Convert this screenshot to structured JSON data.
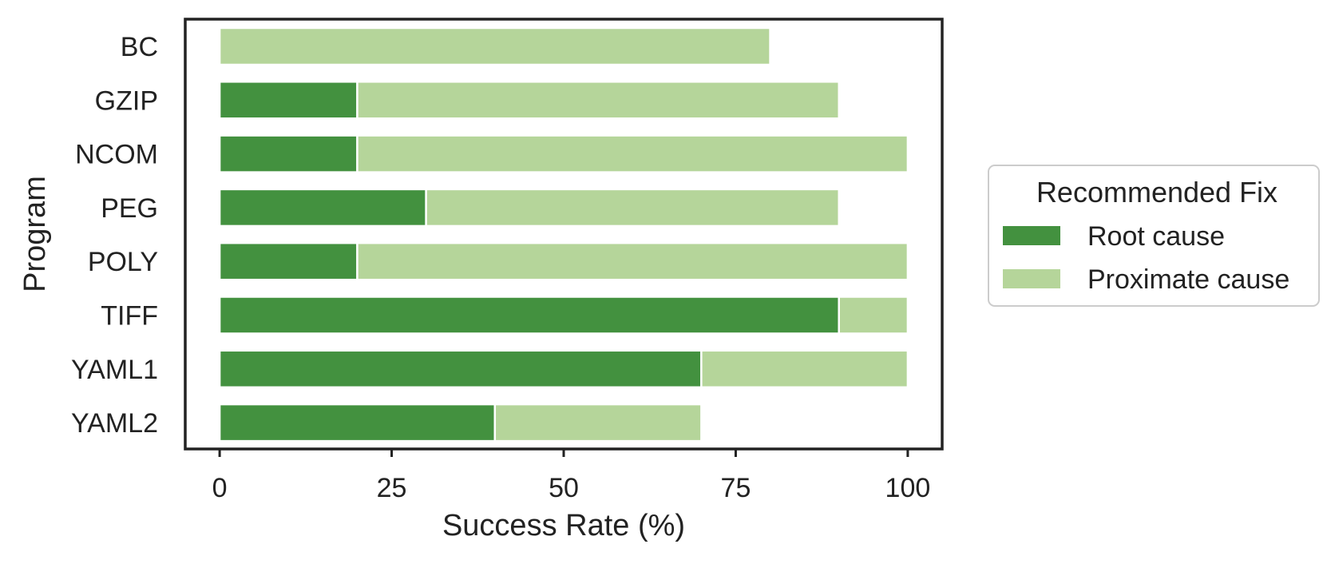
{
  "chart_data": {
    "type": "bar",
    "orientation": "horizontal",
    "stacked": true,
    "categories": [
      "BC",
      "GZIP",
      "NCOM",
      "PEG",
      "POLY",
      "TIFF",
      "YAML1",
      "YAML2"
    ],
    "series": [
      {
        "name": "Root cause",
        "color": "#43913f",
        "values": [
          0,
          20,
          20,
          30,
          20,
          90,
          70,
          40
        ]
      },
      {
        "name": "Proximate cause",
        "color": "#b5d59a",
        "values": [
          80,
          70,
          80,
          60,
          80,
          10,
          30,
          30
        ]
      }
    ],
    "xlabel": "Success Rate (%)",
    "ylabel": "Program",
    "xlim": [
      -5,
      105
    ],
    "xticks": [
      0,
      25,
      50,
      75,
      100
    ],
    "grid": false,
    "legend": {
      "title": "Recommended Fix",
      "placement": "outside-right"
    }
  }
}
